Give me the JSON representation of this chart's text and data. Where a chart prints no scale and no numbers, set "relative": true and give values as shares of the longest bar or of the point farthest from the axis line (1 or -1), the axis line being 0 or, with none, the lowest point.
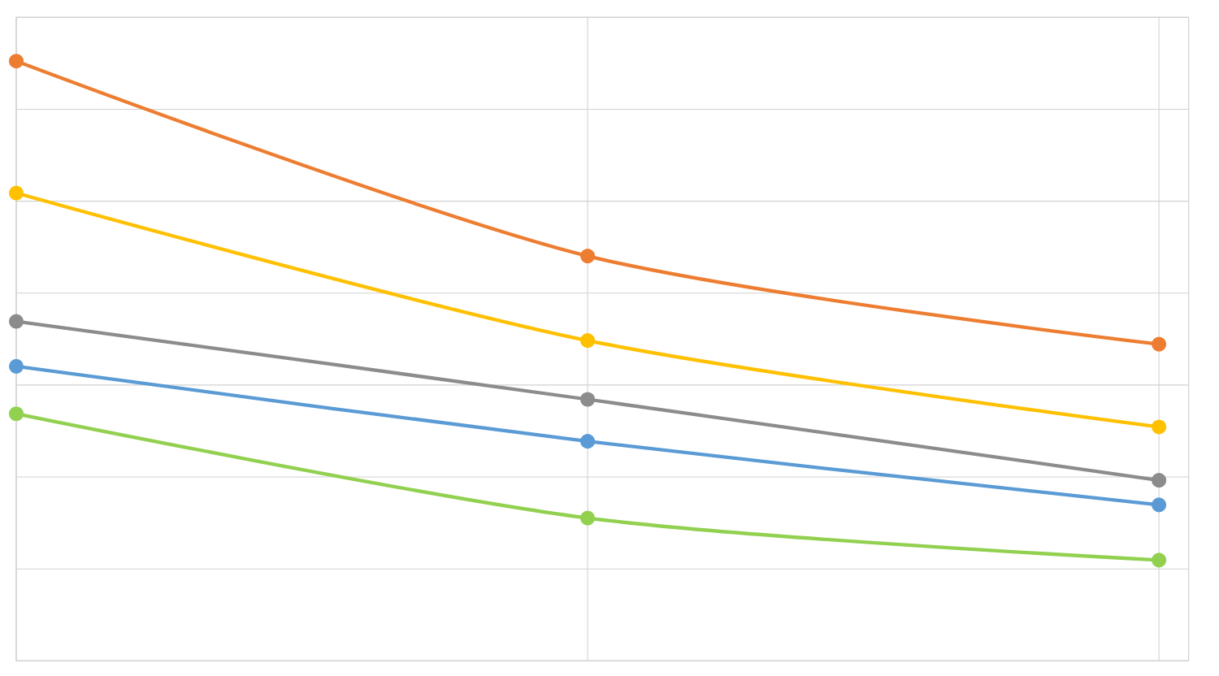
{
  "chart_data": {
    "type": "line",
    "relative": true,
    "grid": true,
    "marker": "circle",
    "line_style": "solid",
    "categories": [
      null,
      null,
      null
    ],
    "series": [
      {
        "color": "#ed7d31",
        "values": [
          1,
          0.675,
          0.528
        ]
      },
      {
        "color": "#ffc000",
        "values": [
          0.78,
          0.534,
          0.39
        ]
      },
      {
        "color": "#8c8c8c",
        "values": [
          0.566,
          0.436,
          0.301
        ]
      },
      {
        "color": "#5b9bd5",
        "values": [
          0.491,
          0.366,
          0.26
        ]
      },
      {
        "color": "#92d050",
        "values": [
          0.412,
          0.238,
          0.168
        ]
      }
    ]
  }
}
